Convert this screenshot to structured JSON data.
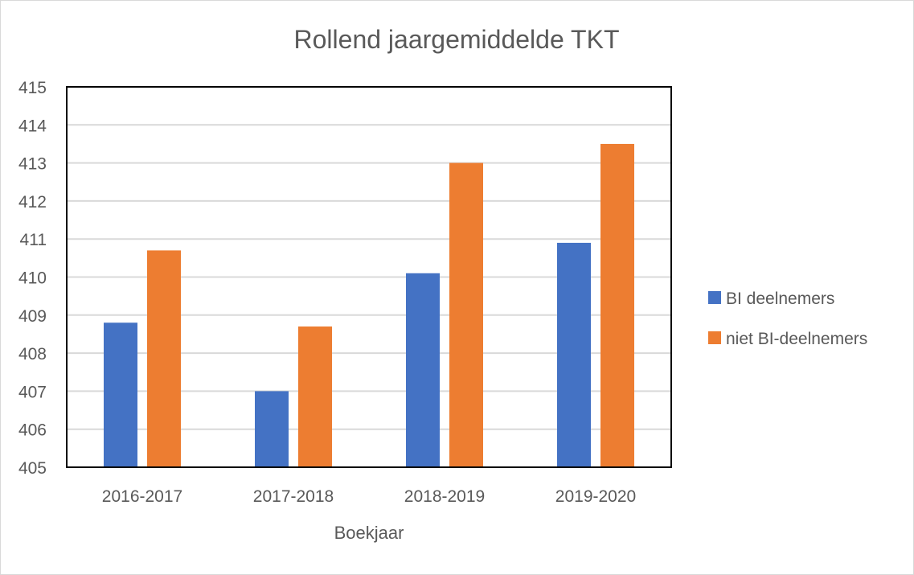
{
  "chart_data": {
    "type": "bar",
    "title": "Rollend jaargemiddelde TKT",
    "xlabel": "Boekjaar",
    "ylabel": "",
    "categories": [
      "2016-2017",
      "2017-2018",
      "2018-2019",
      "2019-2020"
    ],
    "series": [
      {
        "name": "BI deelnemers",
        "color": "#4472C4",
        "values": [
          408.8,
          407.0,
          410.1,
          410.9
        ]
      },
      {
        "name": "niet BI-deelnemers",
        "color": "#ED7D31",
        "values": [
          410.7,
          408.7,
          413.0,
          413.5
        ]
      }
    ],
    "ylim": [
      405,
      415
    ],
    "yticks": [
      "405",
      "406",
      "407",
      "408",
      "409",
      "410",
      "411",
      "412",
      "413",
      "414",
      "415"
    ],
    "grid": true,
    "legend_position": "right"
  }
}
